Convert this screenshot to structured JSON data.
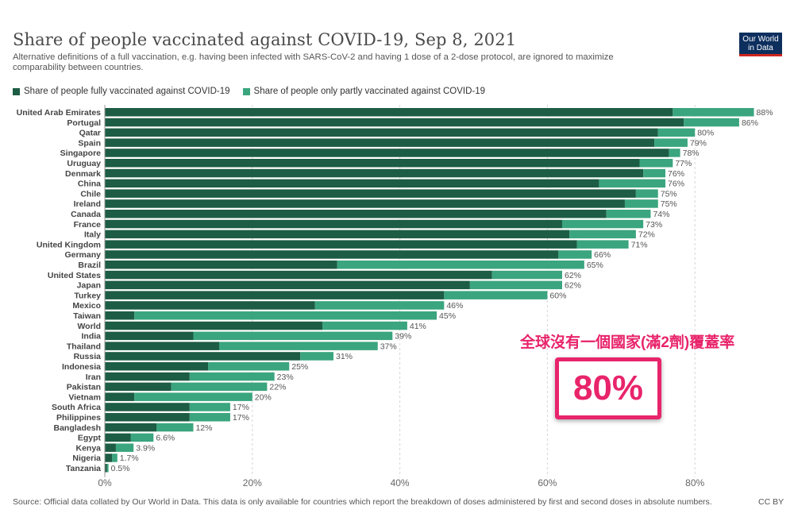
{
  "header": {
    "title": "Share of people vaccinated against COVID-19, Sep 8, 2021",
    "subtitle": "Alternative definitions of a full vaccination, e.g. having been infected with SARS-CoV-2 and having 1 dose of a 2-dose protocol, are ignored to maximize comparability between countries.",
    "logo_line1": "Our World",
    "logo_line2": "in Data"
  },
  "footer": {
    "source": "Source: Official data collated by Our World in Data. This data is only available for countries which report the breakdown of doses administered by first and second doses in absolute numbers.",
    "license": "CC BY"
  },
  "annotation": {
    "text": "全球沒有一個國家(滿2劑)覆蓋率",
    "value": "80%"
  },
  "colors": {
    "fully": "#1d5c45",
    "partly": "#3aa57e",
    "annotation": "#e8246b"
  },
  "chart_data": {
    "type": "bar",
    "orientation": "horizontal",
    "stacked": true,
    "xlim": [
      0,
      88
    ],
    "xticks": [
      0,
      20,
      40,
      60,
      80
    ],
    "xtick_labels": [
      "0%",
      "20%",
      "40%",
      "60%",
      "80%"
    ],
    "grid": "vertical dashed",
    "legend_position": "top-left",
    "categories": [
      "United Arab Emirates",
      "Portugal",
      "Qatar",
      "Spain",
      "Singapore",
      "Uruguay",
      "Denmark",
      "China",
      "Chile",
      "Ireland",
      "Canada",
      "France",
      "Italy",
      "United Kingdom",
      "Germany",
      "Brazil",
      "United States",
      "Japan",
      "Turkey",
      "Mexico",
      "Taiwan",
      "World",
      "India",
      "Thailand",
      "Russia",
      "Indonesia",
      "Iran",
      "Pakistan",
      "Vietnam",
      "South Africa",
      "Philippines",
      "Bangladesh",
      "Egypt",
      "Kenya",
      "Nigeria",
      "Tanzania"
    ],
    "series": [
      {
        "name": "Share of people fully vaccinated against COVID-19",
        "values": [
          77,
          78.5,
          75,
          74.5,
          76.5,
          72.5,
          73,
          67,
          72,
          70.5,
          68,
          62,
          63,
          64,
          61.5,
          31.5,
          52.5,
          49.5,
          46,
          28.5,
          4,
          29.5,
          12,
          15.5,
          26.5,
          14,
          11.5,
          9,
          4,
          11.5,
          11.5,
          7,
          3.5,
          1.5,
          1,
          0.3
        ]
      },
      {
        "name": "Share of people only partly vaccinated against COVID-19",
        "values": [
          11,
          7.5,
          5,
          4.5,
          1.5,
          4.5,
          3,
          9,
          3,
          4.5,
          6,
          11,
          9,
          7,
          4.5,
          33.5,
          9.5,
          12.5,
          14,
          17.5,
          41,
          11.5,
          27,
          21.5,
          4.5,
          11,
          11.5,
          13,
          16,
          5.5,
          5.5,
          5,
          3.1,
          2.4,
          0.7,
          0.2
        ]
      }
    ],
    "total_labels": [
      "88%",
      "86%",
      "80%",
      "79%",
      "78%",
      "77%",
      "76%",
      "76%",
      "75%",
      "75%",
      "74%",
      "73%",
      "72%",
      "71%",
      "66%",
      "65%",
      "62%",
      "62%",
      "60%",
      "46%",
      "45%",
      "41%",
      "39%",
      "37%",
      "31%",
      "25%",
      "23%",
      "22%",
      "20%",
      "17%",
      "17%",
      "12%",
      "6.6%",
      "3.9%",
      "1.7%",
      "0.5%"
    ]
  }
}
